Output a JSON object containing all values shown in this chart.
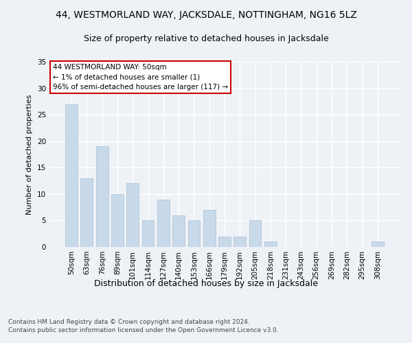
{
  "title1": "44, WESTMORLAND WAY, JACKSDALE, NOTTINGHAM, NG16 5LZ",
  "title2": "Size of property relative to detached houses in Jacksdale",
  "xlabel": "Distribution of detached houses by size in Jacksdale",
  "ylabel": "Number of detached properties",
  "categories": [
    "50sqm",
    "63sqm",
    "76sqm",
    "89sqm",
    "101sqm",
    "114sqm",
    "127sqm",
    "140sqm",
    "153sqm",
    "166sqm",
    "179sqm",
    "192sqm",
    "205sqm",
    "218sqm",
    "231sqm",
    "243sqm",
    "256sqm",
    "269sqm",
    "282sqm",
    "295sqm",
    "308sqm"
  ],
  "values": [
    27,
    13,
    19,
    10,
    12,
    5,
    9,
    6,
    5,
    7,
    2,
    2,
    5,
    1,
    0,
    0,
    0,
    0,
    0,
    0,
    1
  ],
  "bar_color": "#c8d9ea",
  "bar_edge_color": "#a8bfd0",
  "annotation_text": "44 WESTMORLAND WAY: 50sqm\n← 1% of detached houses are smaller (1)\n96% of semi-detached houses are larger (117) →",
  "annotation_box_color": "#ffffff",
  "annotation_box_edge": "#cc0000",
  "footer": "Contains HM Land Registry data © Crown copyright and database right 2024.\nContains public sector information licensed under the Open Government Licence v3.0.",
  "ylim": [
    0,
    35
  ],
  "yticks": [
    0,
    5,
    10,
    15,
    20,
    25,
    30,
    35
  ],
  "bg_color": "#eef2f7",
  "grid_color": "#ffffff",
  "title1_fontsize": 10,
  "title2_fontsize": 9,
  "xlabel_fontsize": 9,
  "ylabel_fontsize": 8,
  "tick_fontsize": 7.5,
  "annotation_fontsize": 7.5,
  "footer_fontsize": 6.5
}
